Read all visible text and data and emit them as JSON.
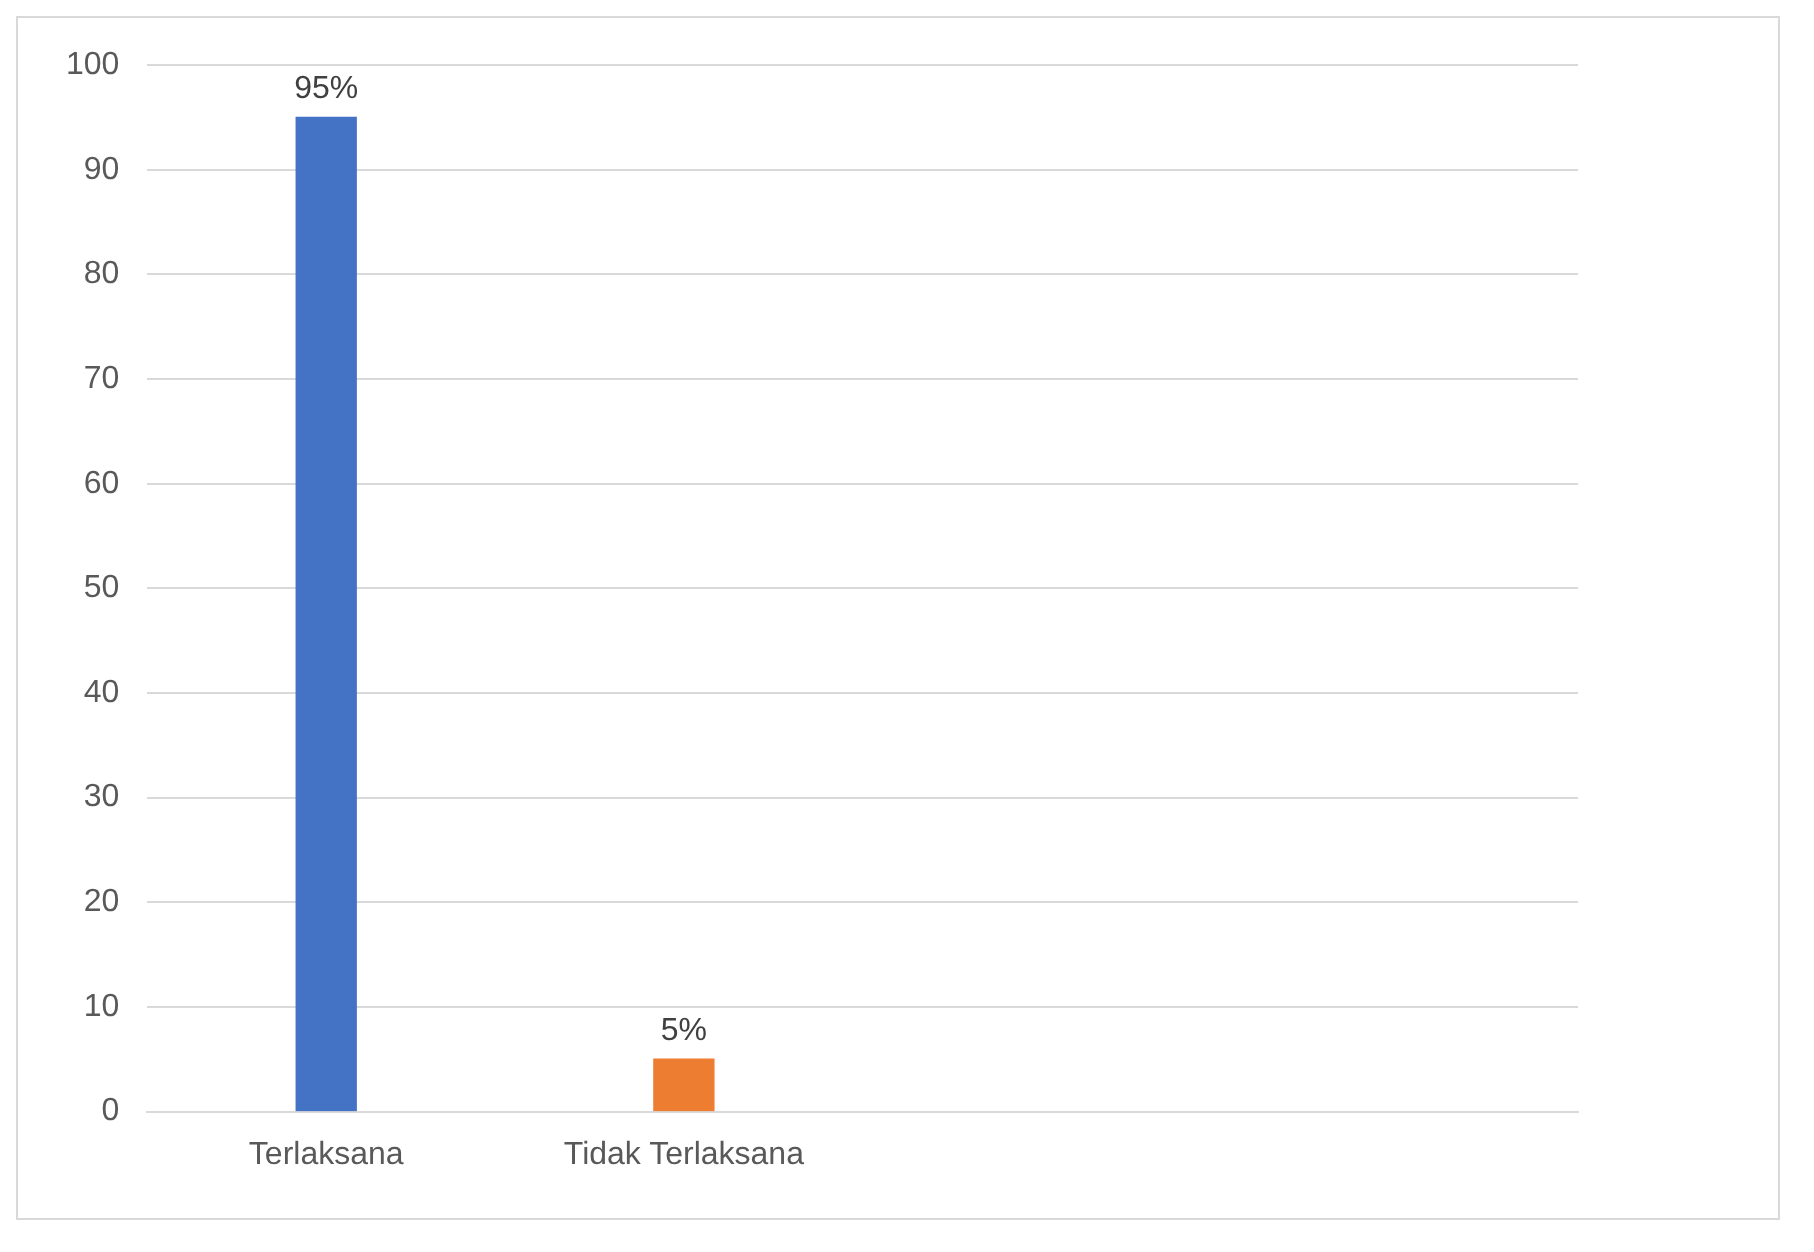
{
  "chart_data": {
    "type": "bar",
    "categories": [
      "Terlaksana",
      "Tidak Terlaksana",
      null,
      null
    ],
    "values": [
      95,
      5,
      null,
      null
    ],
    "colors": [
      "#4472c4",
      "#ed7d31",
      null,
      null
    ],
    "value_labels": [
      "95%",
      "5%",
      null,
      null
    ],
    "ylim": [
      0,
      100
    ],
    "yticks": [
      0,
      10,
      20,
      30,
      40,
      50,
      60,
      70,
      80,
      90,
      100
    ],
    "grid": "y",
    "legend": false
  }
}
